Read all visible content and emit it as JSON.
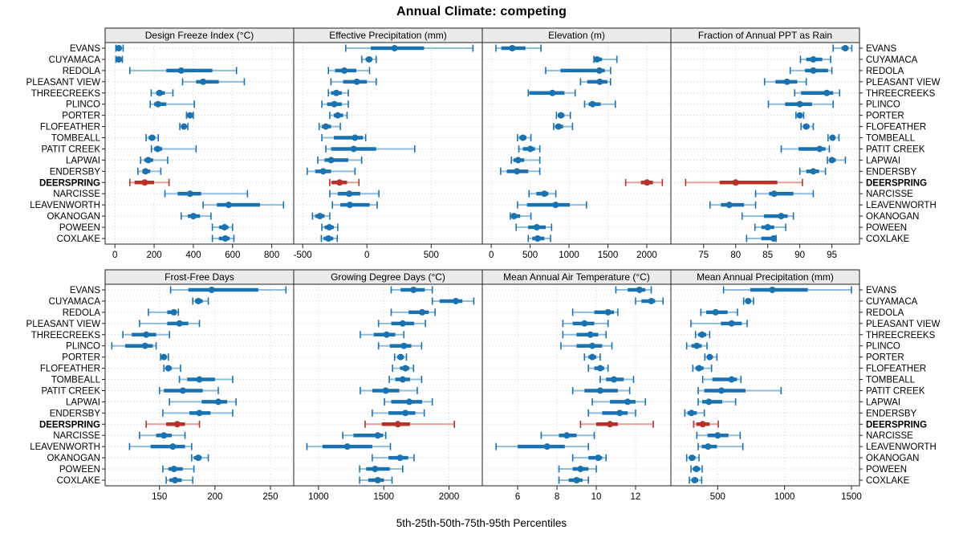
{
  "title": "Annual Climate: competing",
  "caption": "5th-25th-50th-75th-95th Percentiles",
  "colors": {
    "blue": "#1a72b0",
    "blue_light": "#8fbcdb",
    "red": "#b5332a",
    "red_light": "#dfa09a",
    "header_bg": "#ebebeb",
    "grid": "#cfcfcf",
    "border": "#222222"
  },
  "chart_data": {
    "type": "dotplot-trellis",
    "percentiles": [
      "5th",
      "25th",
      "50th",
      "75th",
      "95th"
    ],
    "highlight_station": "DEERSPRING",
    "stations": [
      "EVANS",
      "CUYAMACA",
      "REDOLA",
      "PLEASANT VIEW",
      "THREECREEKS",
      "PLINCO",
      "PORTER",
      "FLOFEATHER",
      "TOMBEALL",
      "PATIT CREEK",
      "LAPWAI",
      "ENDERSBY",
      "DEERSPRING",
      "NARCISSE",
      "LEAVENWORTH",
      "OKANOGAN",
      "POWEEN",
      "COXLAKE"
    ],
    "panels": [
      {
        "id": "design-freeze-index",
        "title": "Design Freeze Index (°C)",
        "xlim": [
          -50,
          912
        ],
        "ticks": [
          0,
          200,
          400,
          600,
          800
        ],
        "series": [
          [
            5,
            12,
            20,
            28,
            42
          ],
          [
            5,
            10,
            20,
            27,
            38
          ],
          [
            76,
            262,
            338,
            497,
            620
          ],
          [
            345,
            414,
            450,
            530,
            660
          ],
          [
            185,
            210,
            228,
            255,
            296
          ],
          [
            180,
            200,
            220,
            262,
            405
          ],
          [
            365,
            375,
            383,
            392,
            400
          ],
          [
            331,
            342,
            352,
            362,
            372
          ],
          [
            159,
            172,
            190,
            205,
            221
          ],
          [
            186,
            200,
            218,
            241,
            414
          ],
          [
            131,
            150,
            170,
            195,
            269
          ],
          [
            117,
            140,
            156,
            180,
            234
          ],
          [
            76,
            100,
            152,
            200,
            276
          ],
          [
            255,
            320,
            383,
            440,
            676
          ],
          [
            450,
            520,
            580,
            740,
            860
          ],
          [
            338,
            372,
            400,
            434,
            490
          ],
          [
            497,
            531,
            559,
            579,
            600
          ],
          [
            497,
            530,
            563,
            585,
            607
          ]
        ]
      },
      {
        "id": "effective-precipitation",
        "title": "Effective Precipitation (mm)",
        "xlim": [
          -570,
          898
        ],
        "ticks": [
          -500,
          0,
          500
        ],
        "series": [
          [
            -165,
            30,
            215,
            445,
            825
          ],
          [
            -40,
            -10,
            17,
            41,
            72
          ],
          [
            -300,
            -248,
            -176,
            -83,
            20
          ],
          [
            -280,
            -186,
            -79,
            0,
            72
          ],
          [
            -300,
            -279,
            -238,
            -196,
            -145
          ],
          [
            -351,
            -310,
            -254,
            -196,
            -145
          ],
          [
            -289,
            -258,
            -227,
            -186,
            -155
          ],
          [
            -372,
            -351,
            -320,
            -279,
            -207
          ],
          [
            -351,
            -258,
            -93,
            -31,
            -10
          ],
          [
            -320,
            -279,
            -103,
            72,
            372
          ],
          [
            -382,
            -330,
            -279,
            -145,
            -41
          ],
          [
            -465,
            -403,
            -341,
            -279,
            -93
          ],
          [
            -290,
            -275,
            -213,
            -155,
            -62
          ],
          [
            -289,
            -227,
            -138,
            -52,
            93
          ],
          [
            -269,
            -207,
            -134,
            21,
            79
          ],
          [
            -424,
            -403,
            -366,
            -330,
            -289
          ],
          [
            -351,
            -330,
            -293,
            -258,
            -227
          ],
          [
            -355,
            -337,
            -300,
            -262,
            -231
          ]
        ]
      },
      {
        "id": "elevation",
        "title": "Elevation (m)",
        "xlim": [
          -115,
          2310
        ],
        "ticks": [
          0,
          500,
          1000,
          1500,
          2000
        ],
        "series": [
          [
            60,
            130,
            270,
            440,
            640
          ],
          [
            1320,
            1330,
            1360,
            1425,
            1615
          ],
          [
            700,
            890,
            1390,
            1460,
            1535
          ],
          [
            1148,
            1234,
            1396,
            1493,
            1534
          ],
          [
            476,
            490,
            786,
            941,
            1079
          ],
          [
            1200,
            1252,
            1303,
            1407,
            1596
          ],
          [
            838,
            855,
            897,
            941,
            1017
          ],
          [
            803,
            821,
            866,
            924,
            1045
          ],
          [
            338,
            362,
            407,
            452,
            510
          ],
          [
            355,
            407,
            503,
            562,
            624
          ],
          [
            259,
            286,
            345,
            424,
            624
          ],
          [
            121,
            200,
            331,
            476,
            624
          ],
          [
            1728,
            1924,
            2003,
            2079,
            2200
          ],
          [
            486,
            580,
            683,
            735,
            830
          ],
          [
            338,
            460,
            828,
            1010,
            1224
          ],
          [
            245,
            260,
            293,
            372,
            510
          ],
          [
            320,
            475,
            586,
            700,
            776
          ],
          [
            476,
            528,
            596,
            683,
            762
          ]
        ]
      },
      {
        "id": "fraction-annual-ppt-rain",
        "title": "Fraction of Annual PPT as Rain",
        "xlim": [
          69.9,
          99.3
        ],
        "ticks": [
          75,
          80,
          85,
          90,
          95
        ],
        "series": [
          [
            95.2,
            96.5,
            97.1,
            97.6,
            98.1
          ],
          [
            90.1,
            91.0,
            92.1,
            93.5,
            94.8
          ],
          [
            88.5,
            90.8,
            92.1,
            94.4,
            95.0
          ],
          [
            84.5,
            86.2,
            88.0,
            89.6,
            91.0
          ],
          [
            89.2,
            90.2,
            94.2,
            95.2,
            96.2
          ],
          [
            85.1,
            87.7,
            90.0,
            91.9,
            95.2
          ],
          [
            89.4,
            89.7,
            90.0,
            90.3,
            90.6
          ],
          [
            90.2,
            90.5,
            91.0,
            91.5,
            92.1
          ],
          [
            94.4,
            94.7,
            95.1,
            95.5,
            96.1
          ],
          [
            87.1,
            89.8,
            93.1,
            94.0,
            94.6
          ],
          [
            94.3,
            94.6,
            95.0,
            95.6,
            97.1
          ],
          [
            90.0,
            91.0,
            92.1,
            93.0,
            94.0
          ],
          [
            72.2,
            77.5,
            80.0,
            86.5,
            90.4
          ],
          [
            83.1,
            85.2,
            86.0,
            89.0,
            92.1
          ],
          [
            76.0,
            77.7,
            79.0,
            81.3,
            83.1
          ],
          [
            81.0,
            84.4,
            87.1,
            88.1,
            89.0
          ],
          [
            83.0,
            84.0,
            85.0,
            86.0,
            87.8
          ],
          [
            81.7,
            84.0,
            85.9,
            86.1,
            86.3
          ]
        ]
      },
      {
        "id": "frost-free-days",
        "title": "Frost-Free Days",
        "xlim": [
          101,
          271
        ],
        "ticks": [
          150,
          200,
          250
        ],
        "series": [
          [
            160,
            176,
            197,
            239,
            264
          ],
          [
            180,
            182,
            185,
            189,
            194
          ],
          [
            140,
            157,
            163,
            165,
            167
          ],
          [
            132,
            157,
            168,
            176,
            186
          ],
          [
            117,
            125,
            138,
            147,
            159
          ],
          [
            107,
            119,
            137,
            144,
            147
          ],
          [
            151,
            152,
            154,
            156,
            158
          ],
          [
            154,
            156,
            158,
            161,
            169
          ],
          [
            168,
            175,
            186,
            200,
            216
          ],
          [
            150,
            154,
            171,
            189,
            203
          ],
          [
            159,
            188,
            203,
            211,
            219
          ],
          [
            153,
            177,
            186,
            196,
            216
          ],
          [
            138,
            156,
            166,
            173,
            186
          ],
          [
            132,
            147,
            154,
            161,
            173
          ],
          [
            123,
            142,
            162,
            173,
            179
          ],
          [
            179,
            181,
            185,
            188,
            194
          ],
          [
            153,
            158,
            163,
            171,
            181
          ],
          [
            156,
            159,
            164,
            170,
            180
          ]
        ]
      },
      {
        "id": "growing-degree-days",
        "title": "Growing Degree Days (°C)",
        "xlim": [
          810,
          2255
        ],
        "ticks": [
          1000,
          1500,
          2000
        ],
        "series": [
          [
            1557,
            1629,
            1728,
            1814,
            1872
          ],
          [
            1872,
            1928,
            2052,
            2103,
            2190
          ],
          [
            1557,
            1690,
            1794,
            1845,
            1893
          ],
          [
            1460,
            1557,
            1645,
            1732,
            1819
          ],
          [
            1320,
            1423,
            1522,
            1588,
            1654
          ],
          [
            1460,
            1546,
            1654,
            1711,
            1790
          ],
          [
            1583,
            1604,
            1629,
            1654,
            1674
          ],
          [
            1567,
            1625,
            1666,
            1695,
            1728
          ],
          [
            1542,
            1588,
            1645,
            1701,
            1790
          ],
          [
            1320,
            1412,
            1515,
            1619,
            1757
          ],
          [
            1505,
            1557,
            1695,
            1794,
            1872
          ],
          [
            1412,
            1536,
            1666,
            1742,
            1810
          ],
          [
            1357,
            1485,
            1608,
            1701,
            2041
          ],
          [
            1186,
            1268,
            1454,
            1495,
            1515
          ],
          [
            911,
            1031,
            1221,
            1412,
            1551
          ],
          [
            1412,
            1536,
            1625,
            1687,
            1732
          ],
          [
            1315,
            1365,
            1433,
            1546,
            1645
          ],
          [
            1315,
            1381,
            1454,
            1501,
            1563
          ]
        ]
      },
      {
        "id": "mean-annual-air-temperature",
        "title": "Mean Annual Air Temperature (°C)",
        "xlim": [
          4.2,
          13.8
        ],
        "ticks": [
          6,
          8,
          10,
          12
        ],
        "series": [
          [
            11.0,
            11.6,
            12.2,
            12.5,
            12.8
          ],
          [
            12.0,
            12.3,
            12.8,
            13.0,
            13.4
          ],
          [
            8.8,
            9.9,
            10.6,
            10.9,
            11.1
          ],
          [
            8.3,
            8.8,
            9.4,
            9.9,
            10.6
          ],
          [
            8.3,
            9.0,
            9.7,
            10.1,
            10.5
          ],
          [
            8.2,
            9.0,
            9.8,
            10.3,
            10.8
          ],
          [
            9.4,
            9.6,
            9.8,
            10.0,
            10.2
          ],
          [
            9.6,
            9.9,
            10.2,
            10.4,
            10.6
          ],
          [
            10.2,
            10.5,
            10.9,
            11.4,
            11.9
          ],
          [
            8.8,
            9.4,
            10.2,
            11.1,
            11.7
          ],
          [
            9.8,
            10.7,
            11.6,
            12.0,
            12.5
          ],
          [
            9.6,
            10.3,
            11.2,
            11.6,
            12.0
          ],
          [
            9.2,
            10.0,
            10.7,
            11.1,
            12.9
          ],
          [
            7.2,
            8.1,
            8.5,
            9.0,
            9.9
          ],
          [
            4.9,
            6.0,
            7.5,
            8.4,
            9.6
          ],
          [
            8.8,
            9.6,
            10.1,
            10.3,
            10.5
          ],
          [
            8.1,
            8.8,
            9.2,
            9.6,
            10.0
          ],
          [
            8.1,
            8.6,
            9.0,
            9.3,
            9.6
          ]
        ]
      },
      {
        "id": "mean-annual-precipitation",
        "title": "Mean Annual Precipitation (mm)",
        "xlim": [
          150,
          1560
        ],
        "ticks": [
          500,
          1000,
          1500
        ],
        "series": [
          [
            544,
            744,
            908,
            1174,
            1500
          ],
          [
            694,
            705,
            728,
            748,
            768
          ],
          [
            374,
            414,
            484,
            574,
            648
          ],
          [
            300,
            524,
            604,
            680,
            720
          ],
          [
            334,
            354,
            384,
            414,
            440
          ],
          [
            268,
            304,
            344,
            380,
            420
          ],
          [
            404,
            420,
            440,
            464,
            494
          ],
          [
            314,
            334,
            360,
            394,
            454
          ],
          [
            388,
            460,
            604,
            644,
            674
          ],
          [
            354,
            400,
            528,
            708,
            974
          ],
          [
            354,
            384,
            434,
            534,
            634
          ],
          [
            254,
            274,
            304,
            344,
            400
          ],
          [
            320,
            340,
            388,
            440,
            504
          ],
          [
            344,
            424,
            500,
            580,
            668
          ],
          [
            354,
            380,
            428,
            494,
            688
          ],
          [
            268,
            284,
            308,
            334,
            360
          ],
          [
            300,
            314,
            340,
            368,
            384
          ],
          [
            288,
            304,
            328,
            354,
            380
          ]
        ]
      }
    ]
  }
}
